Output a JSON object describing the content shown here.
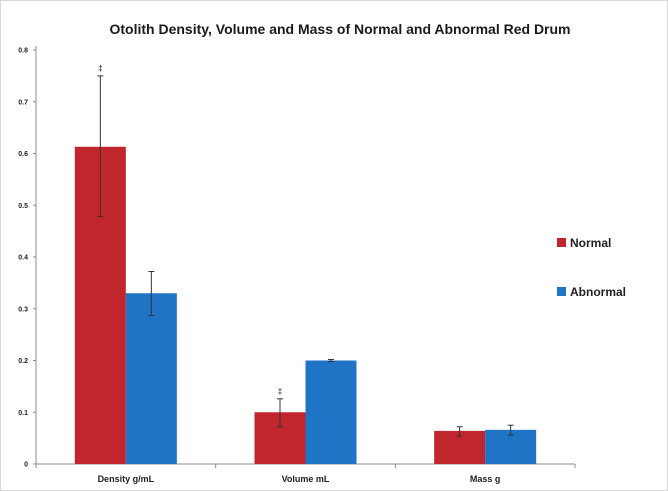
{
  "chart_data": {
    "type": "bar",
    "title": "Otolith Density, Volume and Mass of Normal and Abnormal Red Drum",
    "categories": [
      "Density g/mL",
      "Volume mL",
      "Mass g"
    ],
    "series": [
      {
        "name": "Normal",
        "color": "#c0262c",
        "values": [
          0.613,
          0.1,
          0.064
        ],
        "error": [
          [
            0.478,
            0.75
          ],
          [
            0.072,
            0.126
          ],
          [
            0.054,
            0.072
          ]
        ],
        "markers": [
          "‡",
          "‡",
          ""
        ]
      },
      {
        "name": "Abnormal",
        "color": "#1f74c5",
        "values": [
          0.33,
          0.2,
          0.066
        ],
        "error": [
          [
            0.287,
            0.372
          ],
          [
            0.198,
            0.202
          ],
          [
            0.056,
            0.075
          ]
        ],
        "markers": [
          "",
          "",
          ""
        ]
      }
    ],
    "ylim": [
      0,
      0.8
    ],
    "yticks": [
      "0",
      "0.1",
      "0.2",
      "0.3",
      "0.4",
      "0.5",
      "0.6",
      "0.7",
      "0.8"
    ],
    "xlabel": "",
    "ylabel": "",
    "grid": false,
    "legend_position": "right"
  }
}
